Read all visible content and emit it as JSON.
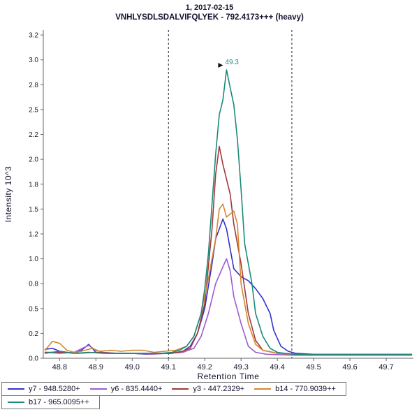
{
  "title": {
    "line1": "1, 2017-02-15",
    "line2": "VNHLYSDLSDALVIFQLYEK - 792.4173+++ (heavy)"
  },
  "chart_data": {
    "type": "line",
    "title": "1, 2017-02-15",
    "subtitle": "VNHLYSDLSDALVIFQLYEK - 792.4173+++ (heavy)",
    "xlabel": "Retention Time",
    "ylabel": "Intensity 10^3",
    "xlim": [
      48.755,
      49.775
    ],
    "ylim": [
      0,
      3.3
    ],
    "grid": false,
    "legend_position": "bottom",
    "x_ticks": {
      "values": [
        48.8,
        48.9,
        49.0,
        49.1,
        49.2,
        49.3,
        49.4,
        49.5,
        49.6,
        49.7
      ],
      "labels": [
        "48.8",
        "48.9",
        "49.0",
        "49.1",
        "49.2",
        "49.3",
        "49.4",
        "49.5",
        "49.6",
        "49.7"
      ]
    },
    "y_ticks": {
      "values": [
        0,
        0.25,
        0.5,
        0.75,
        1.0,
        1.25,
        1.5,
        1.75,
        2.0,
        2.25,
        2.5,
        2.75,
        3.0,
        3.25
      ],
      "labels": [
        "0.0",
        "0.2",
        "0.5",
        "0.8",
        "1.0",
        "1.2",
        "1.5",
        "1.8",
        "2.0",
        "2.2",
        "2.5",
        "2.8",
        "3.0",
        "3.2"
      ]
    },
    "integration_boundaries": [
      49.1,
      49.44
    ],
    "peak_annotation": {
      "text": "49.3",
      "x": 49.26,
      "y": 2.9
    },
    "series": [
      {
        "id": "y7",
        "name": "y7 - 948.5280+",
        "color": "#3232cd",
        "x": [
          48.76,
          48.78,
          48.8,
          48.82,
          48.84,
          48.86,
          48.88,
          48.9,
          48.93,
          48.96,
          49.0,
          49.04,
          49.08,
          49.11,
          49.14,
          49.16,
          49.18,
          49.2,
          49.22,
          49.23,
          49.25,
          49.26,
          49.27,
          49.28,
          49.3,
          49.32,
          49.34,
          49.36,
          49.38,
          49.39,
          49.41,
          49.43,
          49.45,
          49.5,
          49.6,
          49.7,
          49.77
        ],
        "y": [
          0.09,
          0.1,
          0.07,
          0.06,
          0.05,
          0.08,
          0.14,
          0.06,
          0.05,
          0.05,
          0.05,
          0.04,
          0.05,
          0.05,
          0.07,
          0.12,
          0.25,
          0.5,
          0.95,
          1.2,
          1.4,
          1.3,
          1.1,
          0.9,
          0.82,
          0.78,
          0.7,
          0.6,
          0.45,
          0.28,
          0.12,
          0.07,
          0.05,
          0.04,
          0.04,
          0.04,
          0.04
        ]
      },
      {
        "id": "y6",
        "name": "y6 - 835.4440+",
        "color": "#9a5cd0",
        "x": [
          48.76,
          48.8,
          48.84,
          48.88,
          48.9,
          48.92,
          48.96,
          49.0,
          49.05,
          49.1,
          49.14,
          49.17,
          49.19,
          49.21,
          49.23,
          49.25,
          49.26,
          49.27,
          49.28,
          49.3,
          49.32,
          49.34,
          49.37,
          49.45,
          49.6,
          49.77
        ],
        "y": [
          0.06,
          0.05,
          0.06,
          0.13,
          0.08,
          0.06,
          0.05,
          0.05,
          0.04,
          0.05,
          0.06,
          0.1,
          0.22,
          0.45,
          0.75,
          0.92,
          1.0,
          0.88,
          0.62,
          0.35,
          0.12,
          0.06,
          0.04,
          0.03,
          0.03,
          0.03
        ]
      },
      {
        "id": "y3",
        "name": "y3 - 447.2329+",
        "color": "#a03939",
        "x": [
          48.76,
          48.8,
          48.85,
          48.9,
          48.95,
          49.0,
          49.05,
          49.1,
          49.13,
          49.16,
          49.18,
          49.2,
          49.22,
          49.23,
          49.24,
          49.25,
          49.26,
          49.27,
          49.28,
          49.3,
          49.32,
          49.34,
          49.36,
          49.4,
          49.45,
          49.6,
          49.77
        ],
        "y": [
          0.06,
          0.06,
          0.05,
          0.06,
          0.05,
          0.05,
          0.05,
          0.05,
          0.06,
          0.1,
          0.25,
          0.55,
          1.3,
          1.85,
          2.13,
          1.95,
          1.8,
          1.65,
          1.35,
          0.95,
          0.45,
          0.18,
          0.08,
          0.05,
          0.04,
          0.04,
          0.04
        ]
      },
      {
        "id": "b14",
        "name": "b14 - 770.9039++",
        "color": "#d4872f",
        "x": [
          48.76,
          48.78,
          48.8,
          48.82,
          48.84,
          48.86,
          48.89,
          48.91,
          48.94,
          48.97,
          49.0,
          49.03,
          49.06,
          49.09,
          49.12,
          49.15,
          49.17,
          49.19,
          49.21,
          49.23,
          49.24,
          49.25,
          49.26,
          49.28,
          49.29,
          49.3,
          49.32,
          49.34,
          49.36,
          49.4,
          49.45,
          49.6,
          49.77
        ],
        "y": [
          0.08,
          0.17,
          0.15,
          0.08,
          0.06,
          0.07,
          0.1,
          0.07,
          0.08,
          0.07,
          0.08,
          0.08,
          0.06,
          0.07,
          0.08,
          0.12,
          0.22,
          0.45,
          0.8,
          1.2,
          1.5,
          1.55,
          1.42,
          1.48,
          1.35,
          0.75,
          0.35,
          0.14,
          0.08,
          0.05,
          0.04,
          0.04,
          0.04
        ]
      },
      {
        "id": "b17",
        "name": "b17 - 965.0095++",
        "color": "#1b8a7a",
        "x": [
          48.76,
          48.8,
          48.84,
          48.88,
          48.92,
          48.96,
          49.0,
          49.04,
          49.08,
          49.11,
          49.13,
          49.15,
          49.17,
          49.19,
          49.2,
          49.21,
          49.22,
          49.23,
          49.24,
          49.245,
          49.25,
          49.26,
          49.27,
          49.28,
          49.29,
          49.3,
          49.31,
          49.33,
          49.34,
          49.36,
          49.38,
          49.4,
          49.42,
          49.45,
          49.5,
          49.6,
          49.7,
          49.77
        ],
        "y": [
          0.05,
          0.07,
          0.05,
          0.06,
          0.05,
          0.05,
          0.05,
          0.05,
          0.05,
          0.06,
          0.08,
          0.12,
          0.22,
          0.45,
          0.7,
          1.05,
          1.55,
          2.05,
          2.45,
          2.52,
          2.6,
          2.9,
          2.72,
          2.55,
          2.2,
          1.7,
          1.15,
          0.75,
          0.45,
          0.22,
          0.1,
          0.06,
          0.05,
          0.04,
          0.04,
          0.04,
          0.04,
          0.04
        ]
      }
    ]
  },
  "legend": {
    "rows": [
      [
        0,
        1,
        2,
        3
      ],
      [
        4
      ]
    ],
    "items": [
      {
        "id": "y7",
        "label": "y7 - 948.5280+",
        "color": "#3232cd"
      },
      {
        "id": "y6",
        "label": "y6 - 835.4440+",
        "color": "#9a5cd0"
      },
      {
        "id": "y3",
        "label": "y3 - 447.2329+",
        "color": "#a03939"
      },
      {
        "id": "b14",
        "label": "b14 - 770.9039++",
        "color": "#d4872f"
      },
      {
        "id": "b17",
        "label": "b17 - 965.0095++",
        "color": "#1b8a7a"
      }
    ]
  },
  "colors": {
    "axis": "#666666",
    "tick_text": "#1a1a33",
    "title_text": "#12122e",
    "boundary": "#222222",
    "annotation_text": "#1b8a7a",
    "annotation_arrow": "#111111"
  }
}
